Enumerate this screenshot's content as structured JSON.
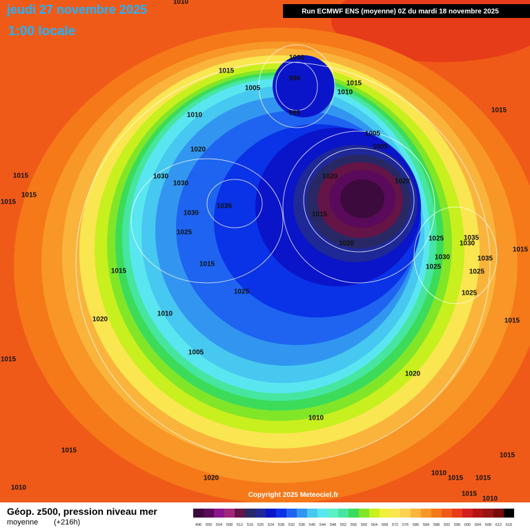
{
  "header": {
    "date": "jeudi 27 novembre 2025",
    "time": "1:00 locale",
    "run": "Run ECMWF ENS (moyenne) 0Z du mardi 18 novembre 2025"
  },
  "footer": {
    "title": "Géop. z500, pression niveau mer",
    "subtitle": "moyenne",
    "lead": "(+216h)",
    "copyright": "Copyright 2025 Meteociel.fr"
  },
  "legend": {
    "values": [
      496,
      500,
      504,
      508,
      512,
      516,
      520,
      524,
      528,
      532,
      536,
      540,
      544,
      548,
      552,
      556,
      560,
      564,
      568,
      572,
      576,
      580,
      584,
      588,
      592,
      596,
      600,
      604,
      608,
      612,
      616
    ],
    "colors": [
      "#3c0a3c",
      "#5a0a5a",
      "#8c148c",
      "#a0287a",
      "#641446",
      "#282864",
      "#1e2896",
      "#0a14c8",
      "#0a32e6",
      "#1e64f0",
      "#3296f0",
      "#46c8f0",
      "#5ae6f0",
      "#5af0c8",
      "#46e6a0",
      "#3cdc5a",
      "#82e628",
      "#c8f01e",
      "#f0f03c",
      "#fae650",
      "#fcd250",
      "#fab43c",
      "#f89628",
      "#f57819",
      "#f05a19",
      "#e63c19",
      "#d21e1e",
      "#b41414",
      "#961414",
      "#780a0a",
      "#000000"
    ]
  },
  "isobar_labels": [
    "1010",
    "1015",
    "1000",
    "990",
    "1015",
    "1010",
    "1005",
    "1010",
    "995",
    "1015",
    "1005",
    "1005",
    "1020",
    "1015",
    "1030",
    "1030",
    "1020",
    "1020",
    "1015",
    "1015",
    "1035",
    "1030",
    "1015",
    "1025",
    "1035",
    "1025",
    "1030",
    "1020",
    "1015",
    "1030",
    "1035",
    "1015",
    "1025",
    "1015",
    "1025",
    "1025",
    "1025",
    "1010",
    "1020",
    "1015",
    "1005",
    "1015",
    "1020",
    "1010",
    "1015",
    "1015",
    "1010",
    "1015",
    "1010",
    "1020",
    "1015",
    "1015",
    "1010"
  ]
}
